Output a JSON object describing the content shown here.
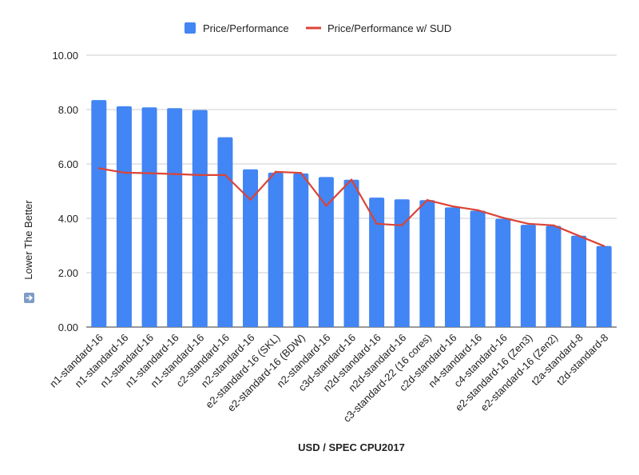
{
  "chart_data": {
    "type": "bar",
    "title": "",
    "xlabel": "USD / SPEC CPU2017",
    "ylabel": "Lower The Better",
    "ylabel_icon": "down-arrow-icon",
    "ylim": [
      0,
      10
    ],
    "yticks": [
      "0.00",
      "2.00",
      "4.00",
      "6.00",
      "8.00",
      "10.00"
    ],
    "grid": true,
    "legend_position": "top-center",
    "categories": [
      "n1-standard-16",
      "n1-standard-16",
      "n1-standard-16",
      "n1-standard-16",
      "n1-standard-16",
      "c2-standard-16",
      "n2-standard-16",
      "e2-standard-16 (SKL)",
      "e2-standard-16 (BDW)",
      "n2-standard-16",
      "c3d-standard-16",
      "n2d-standard-16",
      "n2d-standard-16",
      "c3-standard-22 (16 cores)",
      "c2d-standard-16",
      "n4-standard-16",
      "c4-standard-16",
      "e2-standard-16 (Zen3)",
      "e2-standard-16 (Zen2)",
      "t2a-standard-8",
      "t2d-standard-8"
    ],
    "series": [
      {
        "name": "Price/Performance",
        "type": "bar",
        "color": "#4285f4",
        "values": [
          8.35,
          8.12,
          8.08,
          8.05,
          7.98,
          6.98,
          5.8,
          5.68,
          5.65,
          5.52,
          5.42,
          4.76,
          4.7,
          4.67,
          4.4,
          4.28,
          3.98,
          3.76,
          3.72,
          3.36,
          2.98
        ]
      },
      {
        "name": "Price/Performance w/ SUD",
        "type": "line",
        "color": "#db4437",
        "values": [
          5.84,
          5.68,
          5.66,
          5.63,
          5.59,
          5.59,
          4.68,
          5.71,
          5.67,
          4.46,
          5.42,
          3.8,
          3.74,
          4.67,
          4.44,
          4.3,
          4.02,
          3.8,
          3.74,
          3.36,
          2.98
        ]
      }
    ]
  }
}
